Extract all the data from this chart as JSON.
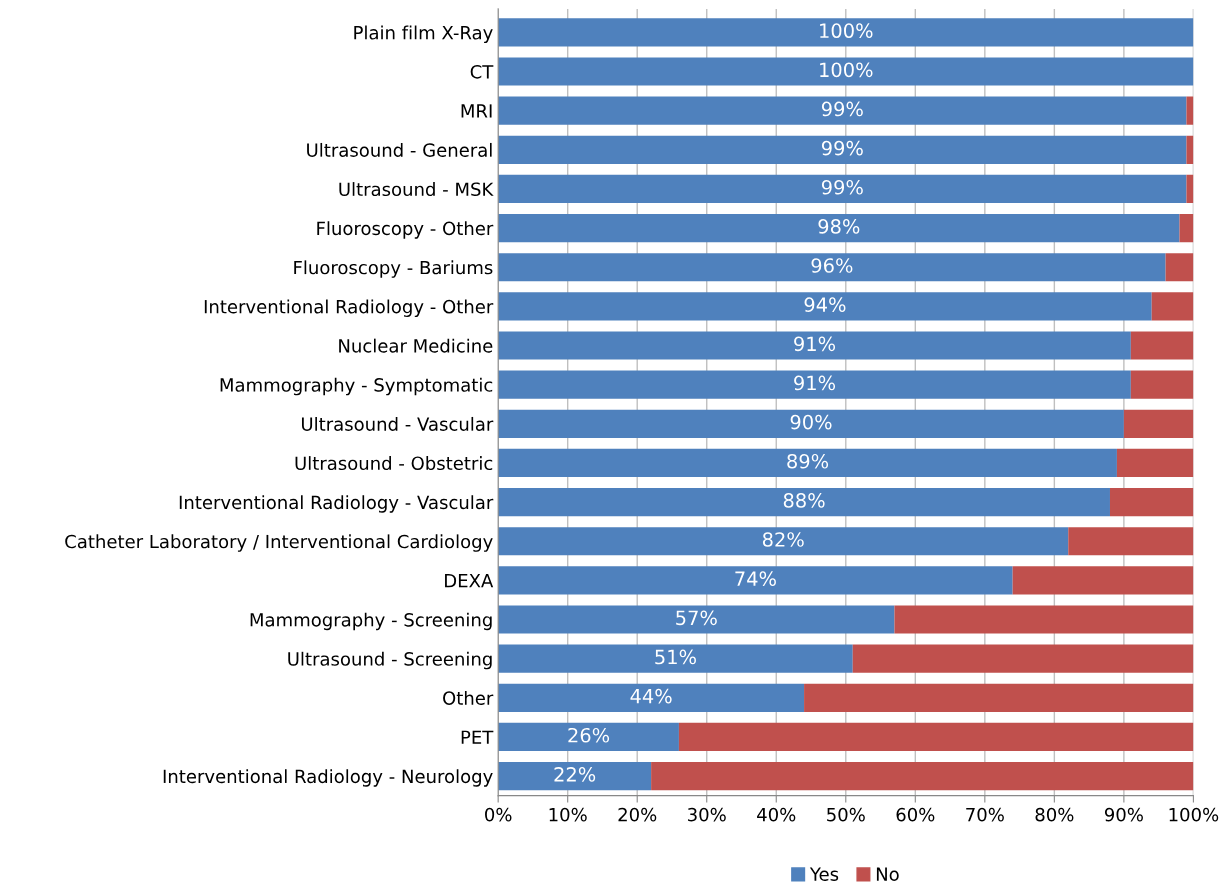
{
  "chart_data": {
    "type": "bar",
    "orientation": "horizontal",
    "stacked": true,
    "categories": [
      "Plain film X-Ray",
      "CT",
      "MRI",
      "Ultrasound - General",
      "Ultrasound - MSK",
      "Fluoroscopy - Other",
      "Fluoroscopy - Bariums",
      "Interventional Radiology - Other",
      "Nuclear Medicine",
      "Mammography - Symptomatic",
      "Ultrasound - Vascular",
      "Ultrasound - Obstetric",
      "Interventional Radiology - Vascular",
      "Catheter Laboratory / Interventional Cardiology",
      "DEXA",
      "Mammography - Screening",
      "Ultrasound - Screening",
      "Other",
      "PET",
      "Interventional Radiology - Neurology"
    ],
    "series": [
      {
        "name": "Yes",
        "color": "#4f81bd",
        "values": [
          100,
          100,
          99,
          99,
          99,
          98,
          96,
          94,
          91,
          91,
          90,
          89,
          88,
          82,
          74,
          57,
          51,
          44,
          26,
          22
        ],
        "value_labels": [
          "100%",
          "100%",
          "99%",
          "99%",
          "99%",
          "98%",
          "96%",
          "94%",
          "91%",
          "91%",
          "90%",
          "89%",
          "88%",
          "82%",
          "74%",
          "57%",
          "51%",
          "44%",
          "26%",
          "22%"
        ]
      },
      {
        "name": "No",
        "color": "#c0504d",
        "values": [
          0,
          0,
          1,
          1,
          1,
          2,
          4,
          6,
          9,
          9,
          10,
          11,
          12,
          18,
          26,
          43,
          49,
          56,
          74,
          78
        ]
      }
    ],
    "xlim": [
      0,
      100
    ],
    "xticks": [
      {
        "value": 0,
        "label": "0%"
      },
      {
        "value": 10,
        "label": "10%"
      },
      {
        "value": 20,
        "label": "20%"
      },
      {
        "value": 30,
        "label": "30%"
      },
      {
        "value": 40,
        "label": "40%"
      },
      {
        "value": 50,
        "label": "50%"
      },
      {
        "value": 60,
        "label": "60%"
      },
      {
        "value": 70,
        "label": "70%"
      },
      {
        "value": 80,
        "label": "80%"
      },
      {
        "value": 90,
        "label": "90%"
      },
      {
        "value": 100,
        "label": "100%"
      }
    ],
    "grid": "x",
    "legend": "bottom"
  }
}
